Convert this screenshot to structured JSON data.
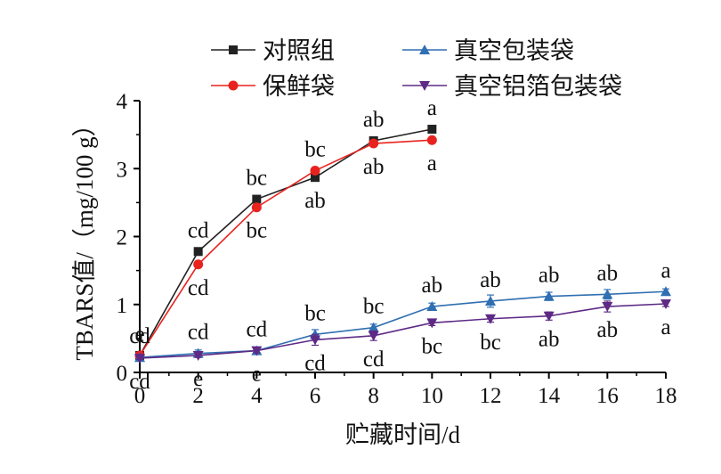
{
  "chart_data": {
    "type": "line",
    "xlabel": "贮藏时间/d",
    "ylabel": "TBARS值/（mg/100 g）",
    "xlim": [
      0,
      18
    ],
    "ylim": [
      0,
      4
    ],
    "xticks": [
      0,
      2,
      4,
      6,
      8,
      10,
      12,
      14,
      16,
      18
    ],
    "yticks": [
      0,
      1,
      2,
      3,
      4
    ],
    "grid": false,
    "legend": "top",
    "series": [
      {
        "name": "对照组",
        "color": "#222222",
        "marker": "square",
        "x": [
          0,
          2,
          4,
          6,
          8,
          10
        ],
        "values": [
          0.25,
          1.78,
          2.55,
          2.87,
          3.41,
          3.58
        ],
        "err": [
          0.02,
          0.04,
          0.04,
          0.04,
          0.04,
          0.04
        ],
        "labels": [
          "e",
          "cd",
          "bc",
          "ab",
          "ab",
          "a"
        ],
        "label_pos": [
          "above",
          "above",
          "above",
          "below",
          "above",
          "above"
        ]
      },
      {
        "name": "保鲜袋",
        "color": "#e8231f",
        "marker": "circle",
        "x": [
          0,
          2,
          4,
          6,
          8,
          10
        ],
        "values": [
          0.25,
          1.59,
          2.43,
          2.97,
          3.37,
          3.42
        ],
        "err": [
          0.02,
          0.04,
          0.04,
          0.04,
          0.04,
          0.04
        ],
        "labels": [
          "e",
          "cd",
          "bc",
          "bc",
          "ab",
          "a"
        ],
        "label_pos": [
          "above",
          "below",
          "below",
          "above",
          "below",
          "below"
        ]
      },
      {
        "name": "真空包装袋",
        "color": "#2f6fb2",
        "marker": "triangle-up",
        "x": [
          0,
          2,
          4,
          6,
          8,
          10,
          12,
          14,
          16,
          18
        ],
        "values": [
          0.22,
          0.28,
          0.32,
          0.56,
          0.66,
          0.97,
          1.05,
          1.12,
          1.15,
          1.19
        ],
        "err": [
          0.02,
          0.05,
          0.04,
          0.07,
          0.05,
          0.05,
          0.09,
          0.06,
          0.07,
          0.04
        ],
        "labels": [
          "cd",
          "cd",
          "cd",
          "bc",
          "bc",
          "ab",
          "ab",
          "ab",
          "ab",
          "a"
        ],
        "label_pos": [
          "above",
          "above",
          "above",
          "above",
          "above",
          "above",
          "above",
          "above",
          "above",
          "above"
        ]
      },
      {
        "name": "真空铝箔包装袋",
        "color": "#5e2a86",
        "marker": "triangle-down",
        "x": [
          0,
          2,
          4,
          6,
          8,
          10,
          12,
          14,
          16,
          18
        ],
        "values": [
          0.21,
          0.25,
          0.32,
          0.48,
          0.54,
          0.73,
          0.79,
          0.83,
          0.97,
          1.01
        ],
        "err": [
          0.02,
          0.03,
          0.03,
          0.08,
          0.07,
          0.04,
          0.05,
          0.06,
          0.08,
          0.04
        ],
        "labels": [
          "cd",
          "e",
          "e",
          "cd",
          "cd",
          "bc",
          "bc",
          "ab",
          "ab",
          "a"
        ],
        "label_pos": [
          "below",
          "below",
          "below",
          "below",
          "below",
          "below",
          "below",
          "below",
          "below",
          "below"
        ]
      }
    ]
  }
}
